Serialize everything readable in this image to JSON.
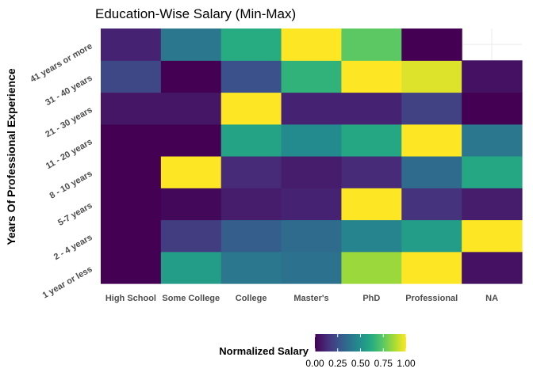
{
  "chart_data": {
    "type": "heatmap",
    "title": "Education-Wise Salary (Min-Max)",
    "xlabel": "",
    "ylabel": "Years Of Professional Experience",
    "x_categories": [
      "High School",
      "Some College",
      "College",
      "Master's",
      "PhD",
      "Professional",
      "NA"
    ],
    "y_categories": [
      "1 year or less",
      "2 - 4 years",
      "5-7 years",
      "8 - 10 years",
      "11 - 20 years",
      "21 - 30 years",
      "31 - 40 years",
      "41 years or more"
    ],
    "values": [
      [
        0.0,
        0.55,
        0.4,
        0.38,
        0.85,
        1.0,
        0.05
      ],
      [
        0.0,
        0.18,
        0.3,
        0.35,
        0.45,
        0.55,
        1.0
      ],
      [
        0.0,
        0.02,
        0.08,
        0.1,
        1.0,
        0.15,
        0.08
      ],
      [
        0.0,
        1.0,
        0.12,
        0.08,
        0.12,
        0.35,
        0.6
      ],
      [
        0.0,
        0.0,
        0.58,
        0.48,
        0.6,
        1.0,
        0.4
      ],
      [
        0.06,
        0.06,
        1.0,
        0.1,
        0.1,
        0.2,
        0.0
      ],
      [
        0.22,
        0.0,
        0.25,
        0.65,
        1.0,
        0.95,
        0.05
      ],
      [
        0.1,
        0.4,
        0.62,
        1.0,
        0.75,
        0.0,
        null
      ]
    ],
    "legend": {
      "title": "Normalized Salary",
      "ticks": [
        "0.00",
        "0.25",
        "0.50",
        "0.75",
        "1.00"
      ],
      "range": [
        0,
        1
      ],
      "placement": "bottom"
    },
    "colormap": "viridis",
    "grid": true
  }
}
